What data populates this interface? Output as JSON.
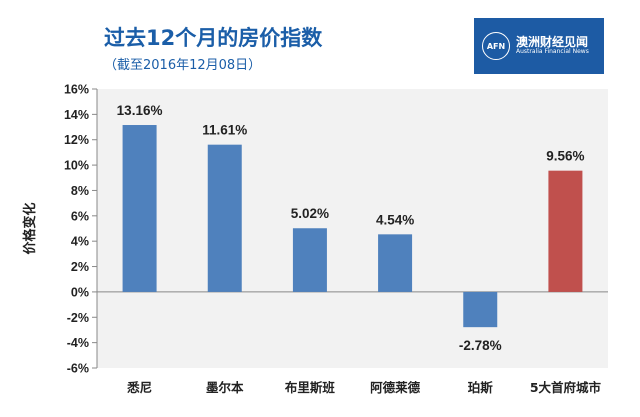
{
  "header": {
    "title": "过去12个月的房价指数",
    "subtitle": "（截至2016年12月08日）"
  },
  "logo": {
    "mark": "AFN",
    "name_cn": "澳洲财经见闻",
    "name_en": "Australia Financial News",
    "color": "#1d5ba4"
  },
  "chart_data": {
    "type": "bar",
    "title": "过去12个月的房价指数",
    "subtitle": "（截至2016年12月08日）",
    "ylabel": "价格变化",
    "xlabel": "",
    "categories": [
      "悉尼",
      "墨尔本",
      "布里斯班",
      "阿德莱德",
      "珀斯",
      "5大首府城市"
    ],
    "values": [
      13.16,
      11.61,
      5.02,
      4.54,
      -2.78,
      9.56
    ],
    "value_labels": [
      "13.16%",
      "11.61%",
      "5.02%",
      "4.54%",
      "-2.78%",
      "9.56%"
    ],
    "ylim": [
      -6,
      16
    ],
    "yticks": [
      16,
      14,
      12,
      10,
      8,
      6,
      4,
      2,
      0,
      -2,
      -4,
      -6
    ],
    "ytick_labels": [
      "16%",
      "14%",
      "12%",
      "10%",
      "8%",
      "6%",
      "4%",
      "2%",
      "0%",
      "-2%",
      "-4%",
      "-6%"
    ],
    "grid": false,
    "colors": [
      "#4f81bd",
      "#4f81bd",
      "#4f81bd",
      "#4f81bd",
      "#4f81bd",
      "#c0504d"
    ],
    "plot_background": "#f2f2f2"
  }
}
